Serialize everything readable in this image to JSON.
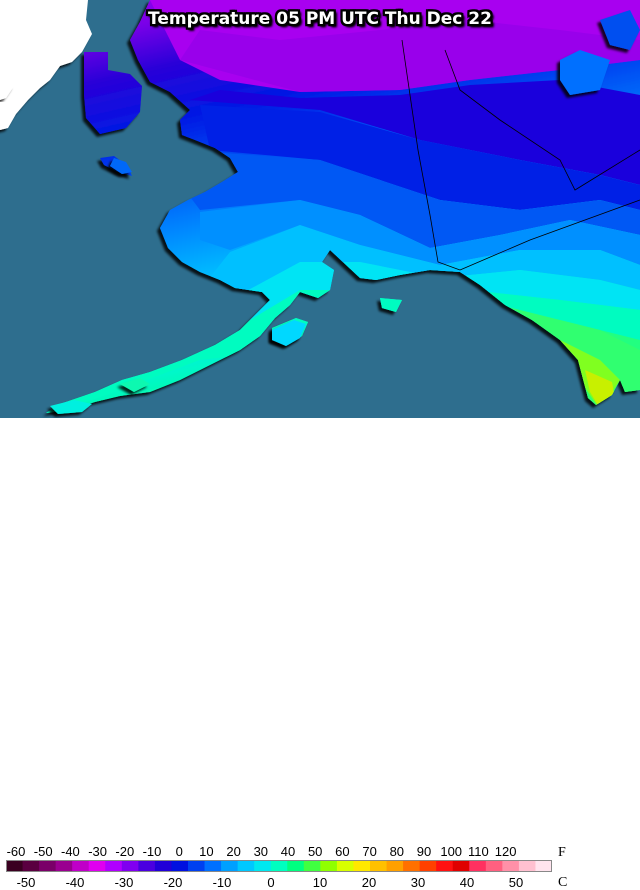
{
  "title": "Temperature 05 PM UTC Thu Dec 22",
  "legend": {
    "f_unit": "F",
    "c_unit": "C",
    "f_labels": [
      "-60",
      "-50",
      "-40",
      "-30",
      "-20",
      "-10",
      "0",
      "10",
      "20",
      "30",
      "40",
      "50",
      "60",
      "70",
      "80",
      "90",
      "100",
      "110",
      "120"
    ],
    "c_labels": [
      "-50",
      "-40",
      "-30",
      "-20",
      "-10",
      "0",
      "10",
      "20",
      "30",
      "40",
      "50"
    ],
    "color_steps": [
      "#3a0020",
      "#5a0040",
      "#7a0068",
      "#9a0090",
      "#c000c8",
      "#e000f0",
      "#b000ff",
      "#8000f0",
      "#4a00e0",
      "#2000d8",
      "#0010e0",
      "#0040f0",
      "#0070ff",
      "#00a0ff",
      "#00c8ff",
      "#00e8f0",
      "#00ffc0",
      "#00ff80",
      "#40ff40",
      "#90ff00",
      "#d8ff00",
      "#ffe800",
      "#ffc000",
      "#ffa000",
      "#ff7000",
      "#ff4000",
      "#ff1010",
      "#e00000",
      "#ff3060",
      "#ff6080",
      "#ff90a8",
      "#ffc0d0",
      "#ffe4ee"
    ]
  },
  "colors": {
    "ocean": "#2e6e8e",
    "land_outside": "#ffffff"
  }
}
